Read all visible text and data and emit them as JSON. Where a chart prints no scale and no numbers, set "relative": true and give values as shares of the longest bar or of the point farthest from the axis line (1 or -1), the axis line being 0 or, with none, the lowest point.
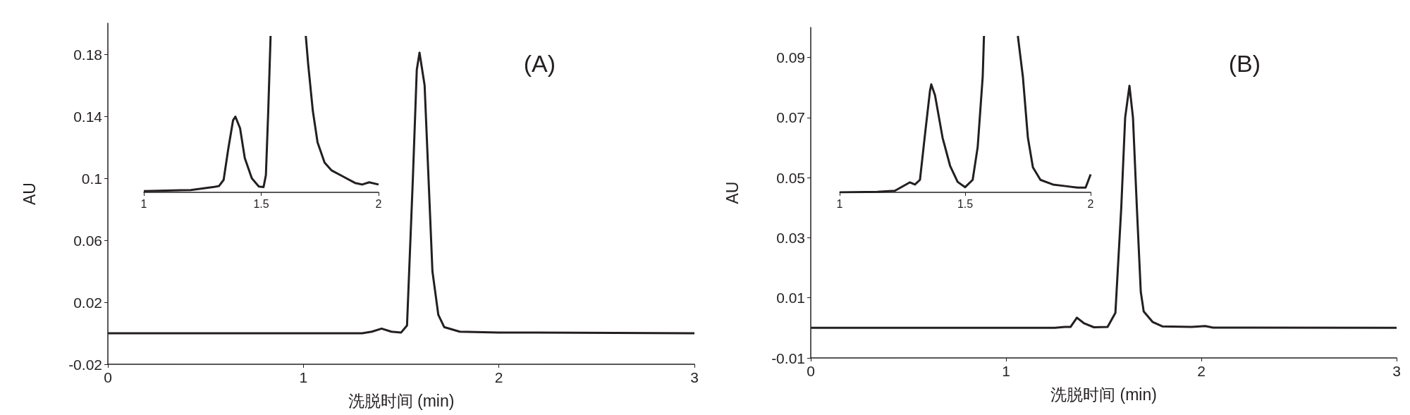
{
  "chart_data": [
    {
      "type": "line",
      "xlabel": "洗脱时间 (min)",
      "ylabel": "AU",
      "annotations": [
        "(A)"
      ],
      "xlim": [
        0,
        3
      ],
      "xticks": [
        0,
        1,
        2,
        3
      ],
      "ylim": [
        -0.02,
        0.2
      ],
      "yticks": [
        -0.02,
        0.02,
        0.06,
        0.1,
        0.14,
        0.18
      ],
      "color": "#231f20",
      "x": [
        0,
        1.3,
        1.35,
        1.4,
        1.45,
        1.5,
        1.53,
        1.56,
        1.58,
        1.594,
        1.62,
        1.64,
        1.66,
        1.69,
        1.72,
        1.8,
        2,
        3
      ],
      "values": [
        0,
        0,
        0.001,
        0.003,
        0.001,
        0.0005,
        0.005,
        0.1,
        0.17,
        0.181,
        0.16,
        0.1,
        0.04,
        0.012,
        0.004,
        0.001,
        0.0005,
        0
      ]
    },
    {
      "type": "line",
      "relative": true,
      "tick_labels": "x",
      "xlim": [
        1,
        2
      ],
      "xticks": [
        1,
        1.5,
        2
      ],
      "color": "#231f20",
      "x": [
        1.0,
        1.2,
        1.3,
        1.32,
        1.34,
        1.36,
        1.38,
        1.39,
        1.41,
        1.43,
        1.46,
        1.49,
        1.51,
        1.52,
        1.53,
        1.54,
        1.6,
        1.69,
        1.7,
        1.72,
        1.74,
        1.77,
        1.8,
        1.85,
        1.9,
        1.93,
        1.96,
        2.0
      ],
      "values": [
        0.0075,
        0.015,
        0.035,
        0.04,
        0.08,
        0.28,
        0.46,
        0.484,
        0.41,
        0.22,
        0.09,
        0.037,
        0.034,
        0.11,
        0.52,
        1.0,
        null,
        1.0,
        0.82,
        0.52,
        0.32,
        0.19,
        0.14,
        0.1,
        0.06,
        0.05,
        0.064,
        0.05
      ]
    },
    {
      "type": "line",
      "xlabel": "洗脱时间 (min)",
      "ylabel": "AU",
      "annotations": [
        "(B)"
      ],
      "xlim": [
        0,
        3
      ],
      "xticks": [
        0,
        1,
        2,
        3
      ],
      "ylim": [
        -0.01,
        0.1
      ],
      "yticks": [
        -0.01,
        0.01,
        0.03,
        0.05,
        0.07,
        0.09
      ],
      "color": "#231f20",
      "x": [
        0,
        1.25,
        1.3,
        1.33,
        1.363,
        1.4,
        1.45,
        1.52,
        1.56,
        1.59,
        1.61,
        1.632,
        1.65,
        1.67,
        1.69,
        1.705,
        1.75,
        1.8,
        1.95,
        2.02,
        2.06,
        3
      ],
      "values": [
        0,
        0,
        0.0003,
        0.0003,
        0.0034,
        0.0015,
        0.0002,
        0.0003,
        0.005,
        0.04,
        0.07,
        0.0806,
        0.07,
        0.04,
        0.012,
        0.0055,
        0.002,
        0.0005,
        0.0003,
        0.0006,
        0.0001,
        0
      ]
    },
    {
      "type": "line",
      "relative": true,
      "tick_labels": "x",
      "xlim": [
        1,
        2
      ],
      "xticks": [
        1,
        1.5,
        2
      ],
      "color": "#231f20",
      "x": [
        1.0,
        1.15,
        1.22,
        1.25,
        1.28,
        1.3,
        1.32,
        1.34,
        1.36,
        1.365,
        1.38,
        1.41,
        1.44,
        1.47,
        1.5,
        1.53,
        1.55,
        1.57,
        1.575,
        1.64,
        1.71,
        1.73,
        1.75,
        1.77,
        1.8,
        1.85,
        1.9,
        1.95,
        1.98,
        2.0
      ],
      "values": [
        0,
        0.003,
        0.01,
        0.037,
        0.064,
        0.05,
        0.08,
        0.37,
        0.65,
        0.69,
        0.62,
        0.35,
        0.17,
        0.067,
        0.033,
        0.08,
        0.29,
        0.74,
        1.0,
        null,
        1.0,
        0.74,
        0.35,
        0.16,
        0.08,
        0.05,
        0.04,
        0.03,
        0.03,
        0.115
      ]
    }
  ]
}
